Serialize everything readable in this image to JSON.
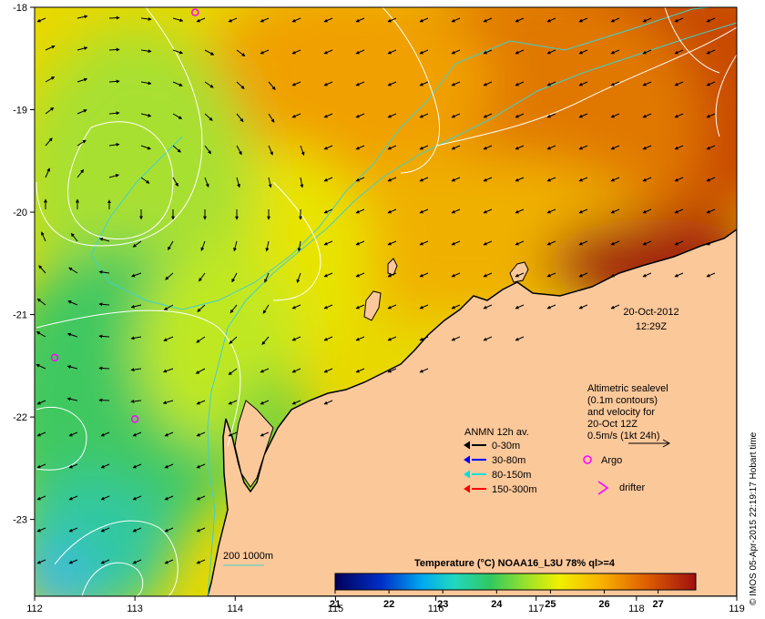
{
  "map": {
    "date": "20-Oct-2012",
    "time": "12:29Z",
    "altimetry_lines": [
      "Altimetric sealevel",
      "(0.1m contours)",
      "and velocity for",
      "20-Oct 12Z",
      "0.5m/s (1kt 24h)"
    ],
    "anmn_title": "ANMN 12h av.",
    "anmn_items": [
      {
        "label": "0-30m",
        "color": "#000000"
      },
      {
        "label": "30-80m",
        "color": "#0000ff"
      },
      {
        "label": "80-150m",
        "color": "#00e0e0"
      },
      {
        "label": "150-300m",
        "color": "#ff0000"
      }
    ],
    "argo_label": "Argo",
    "drifter_label": "drifter",
    "isobath_label": "200  1000m",
    "colorbar_title": "Temperature (°C) NOAA16_L3U 78% ql>=4",
    "colorbar_ticks": [
      "21",
      "22",
      "23",
      "24",
      "25",
      "26",
      "27"
    ],
    "credit": "© IMOS 05-Apr-2015 22:19:17 Hobart time",
    "x_ticks": [
      "112",
      "113",
      "114",
      "115",
      "116",
      "117",
      "118",
      "119"
    ],
    "y_ticks": [
      "-18",
      "-19",
      "-20",
      "-21",
      "-22",
      "-23"
    ],
    "x_range": [
      112,
      119
    ],
    "y_range": [
      -23.75,
      -18
    ],
    "colors": {
      "land": "#fbc89a",
      "argo": "#ff00ff",
      "isobath": "#40d0d0",
      "contour": "#ffffff"
    },
    "argo_floats": [
      {
        "lon": 113.6,
        "lat": -18.05
      },
      {
        "lon": 112.2,
        "lat": -21.42
      },
      {
        "lon": 113.0,
        "lat": -22.02
      }
    ],
    "colorbar_range": [
      21,
      27.7
    ]
  }
}
